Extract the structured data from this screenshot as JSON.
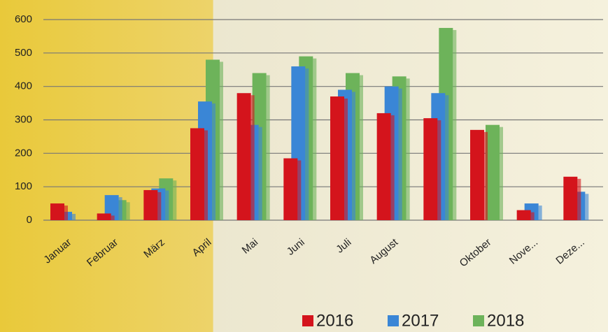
{
  "chart_data": {
    "type": "bar",
    "categories": [
      "Januar",
      "Februar",
      "März",
      "April",
      "Mai",
      "Juni",
      "Juli",
      "August",
      null,
      "Oktober",
      "Nove...",
      "Deze..."
    ],
    "series": [
      {
        "name": "2016",
        "color": "#d4141c",
        "values": [
          50,
          20,
          90,
          275,
          380,
          185,
          370,
          320,
          305,
          270,
          30,
          130
        ]
      },
      {
        "name": "2017",
        "color": "#3a86d6",
        "values": [
          25,
          75,
          95,
          355,
          285,
          460,
          390,
          400,
          380,
          null,
          50,
          85
        ]
      },
      {
        "name": "2018",
        "color": "#6db35a",
        "values": [
          null,
          60,
          125,
          480,
          440,
          490,
          440,
          430,
          575,
          285,
          null,
          null
        ]
      }
    ],
    "ylim": [
      0,
      600
    ],
    "yticks": [
      0,
      100,
      200,
      300,
      400,
      500,
      600
    ],
    "grid": true,
    "legend": "bottom"
  }
}
